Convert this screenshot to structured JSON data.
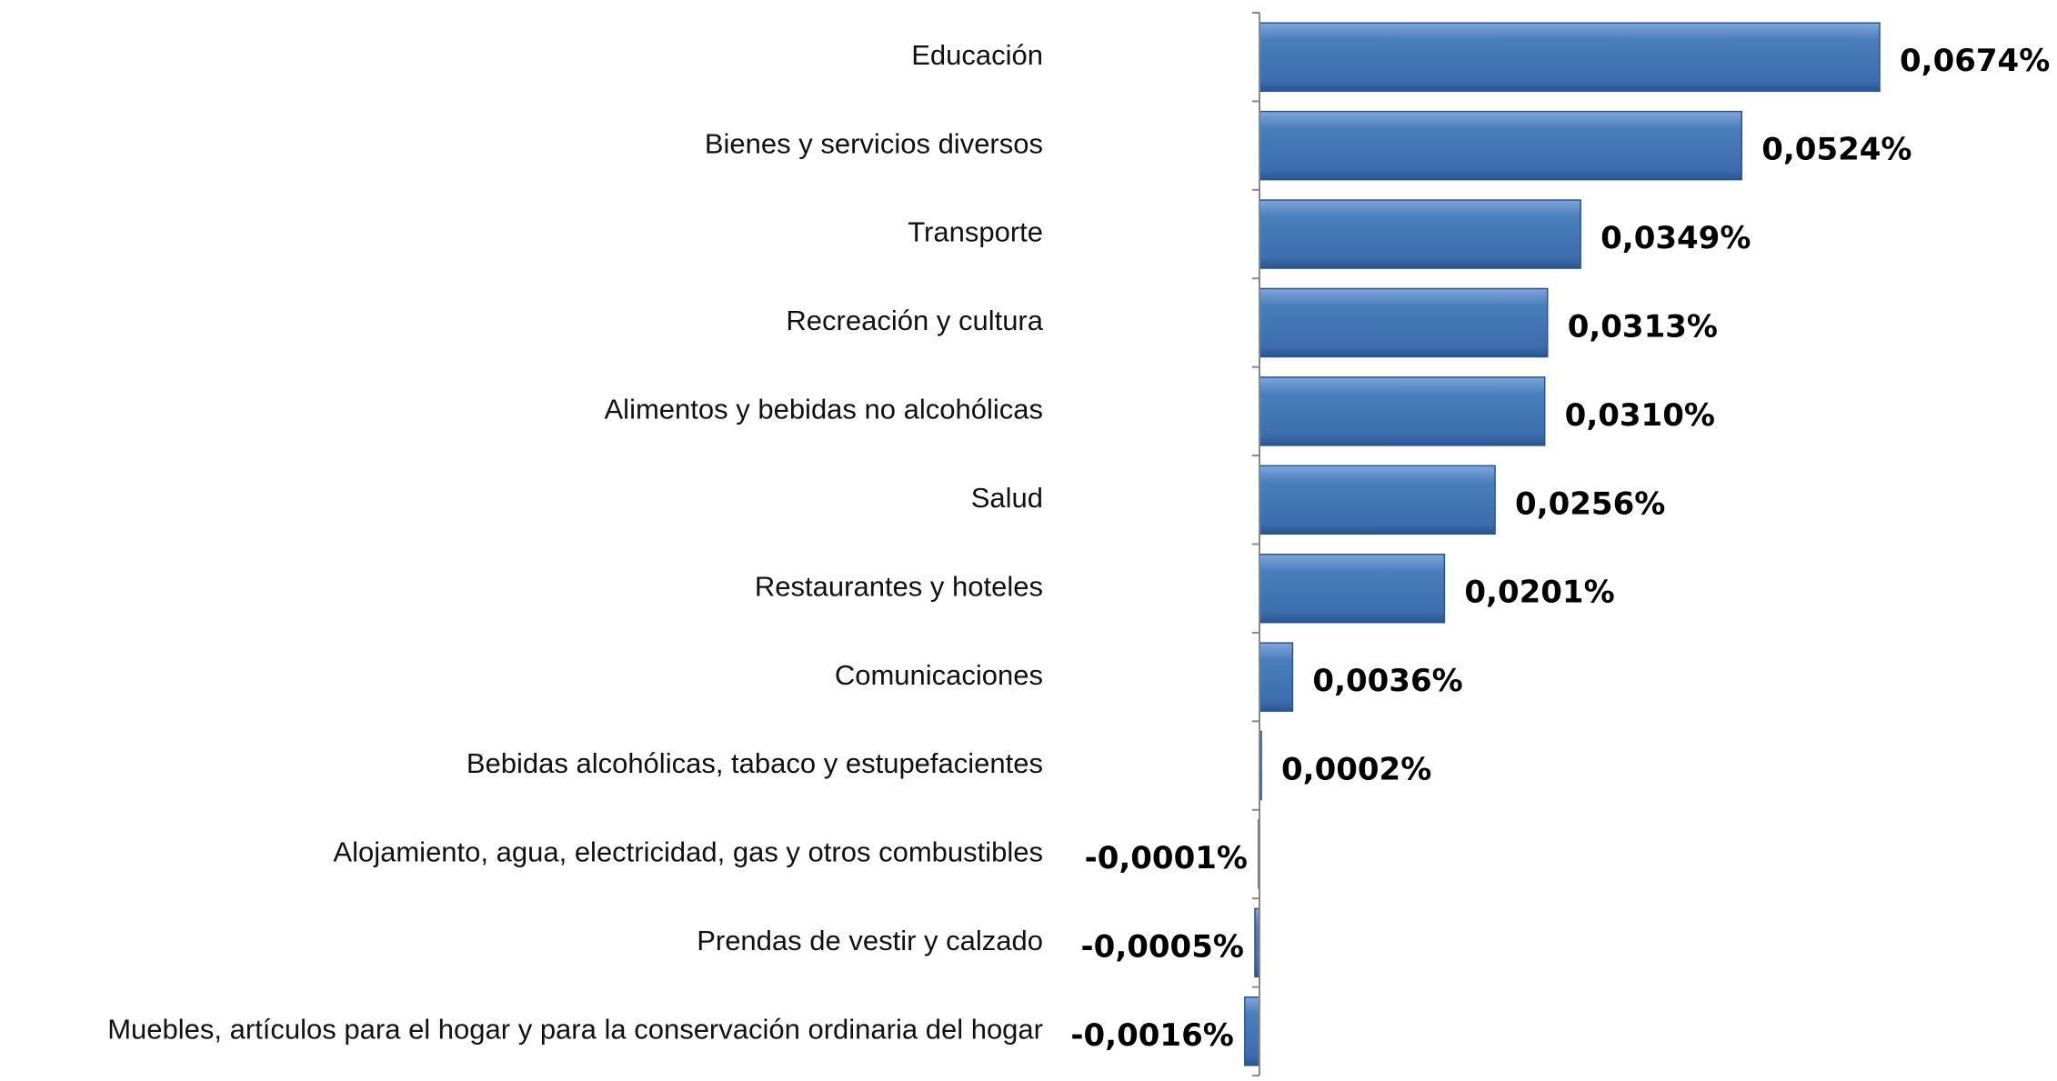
{
  "chart_data": {
    "type": "bar",
    "orientation": "horizontal",
    "categories": [
      "Educación",
      "Bienes y servicios diversos",
      "Transporte",
      "Recreación y cultura",
      "Alimentos y bebidas no alcohólicas",
      "Salud",
      "Restaurantes y hoteles",
      "Comunicaciones",
      "Bebidas alcohólicas, tabaco y estupefacientes",
      "Alojamiento, agua, electricidad, gas y otros combustibles",
      "Prendas de vestir y calzado",
      "Muebles, artículos para el hogar y para la conservación ordinaria del hogar"
    ],
    "values": [
      0.0674,
      0.0524,
      0.0349,
      0.0313,
      0.031,
      0.0256,
      0.0201,
      0.0036,
      0.0002,
      -0.0001,
      -0.0005,
      -0.0016
    ],
    "value_labels": [
      "0,0674%",
      "0,0524%",
      "0,0349%",
      "0,0313%",
      "0,0310%",
      "0,0256%",
      "0,0201%",
      "0,0036%",
      "0,0002%",
      "-0,0001%",
      "-0,0005%",
      "-0,0016%"
    ],
    "color": "#4a7ebb"
  }
}
